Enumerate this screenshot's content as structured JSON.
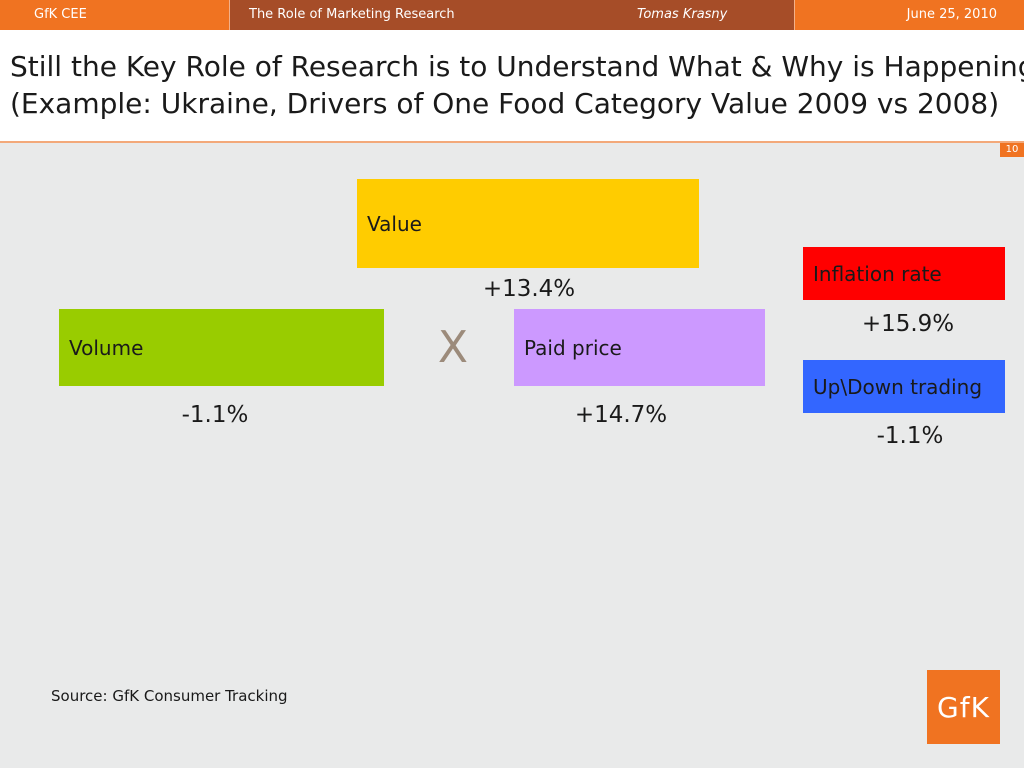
{
  "header": {
    "org": "GfK CEE",
    "presentation_title": "The Role of Marketing Research",
    "author": "Tomas Krasny",
    "date": "June  25, 2010"
  },
  "slide": {
    "title_line1": "Still the Key Role of Research is to Understand What & Why is Happening",
    "title_line2": "(Example: Ukraine, Drivers of One Food Category Value 2009 vs 2008)",
    "page_number": "10"
  },
  "diagram": {
    "value": {
      "label": "Value",
      "change": "+13.4%",
      "color": "#ffcc00"
    },
    "volume": {
      "label": "Volume",
      "change": "-1.1%",
      "color": "#99cc00"
    },
    "operator": "X",
    "paid_price": {
      "label": "Paid price",
      "change": "+14.7%",
      "color": "#cc99ff"
    },
    "inflation": {
      "label": "Inflation rate",
      "change": "+15.9%",
      "color": "#ff0000"
    },
    "trading": {
      "label": "Up\\Down trading",
      "change": "-1.1%",
      "color": "#3366ff"
    }
  },
  "footer": {
    "source": "Source: GfK Consumer Tracking",
    "logo_text": "GfK"
  },
  "colors": {
    "brand_orange": "#f07321",
    "brand_dark": "#a64d28"
  }
}
